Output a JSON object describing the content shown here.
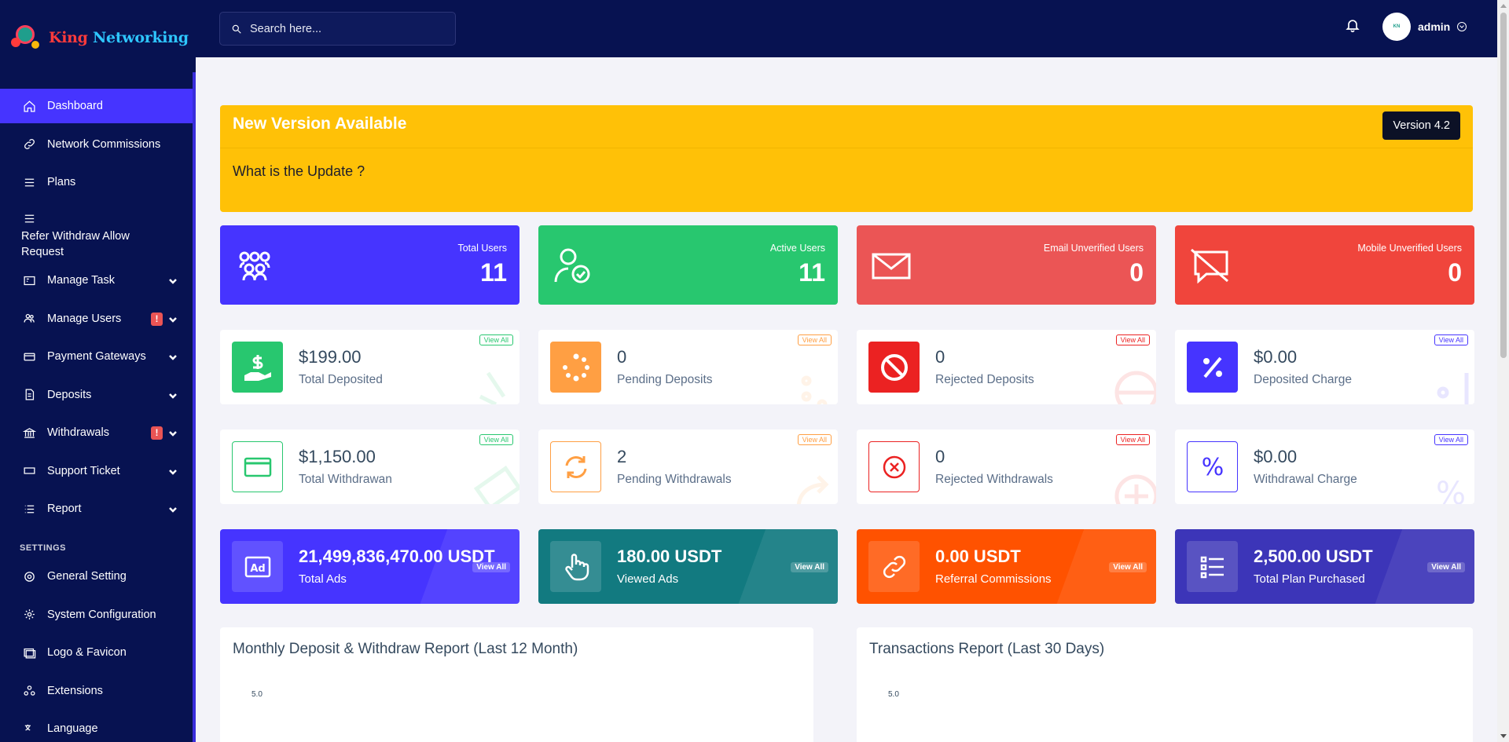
{
  "brand": {
    "part1": "King",
    "part2": "Networking"
  },
  "sidebar": {
    "items": [
      {
        "label": "Dashboard"
      },
      {
        "label": "Network Commissions"
      },
      {
        "label": "Plans"
      },
      {
        "label": "Refer Withdraw Allow Request"
      },
      {
        "label": "Manage Task"
      },
      {
        "label": "Manage Users",
        "badge": "!"
      },
      {
        "label": "Payment Gateways"
      },
      {
        "label": "Deposits"
      },
      {
        "label": "Withdrawals",
        "badge": "!"
      },
      {
        "label": "Support Ticket"
      },
      {
        "label": "Report"
      }
    ],
    "section": "SETTINGS",
    "settings": [
      {
        "label": "General Setting"
      },
      {
        "label": "System Configuration"
      },
      {
        "label": "Logo & Favicon"
      },
      {
        "label": "Extensions"
      },
      {
        "label": "Language"
      }
    ]
  },
  "header": {
    "search_placeholder": "Search here...",
    "user": "admin"
  },
  "banner": {
    "title": "New Version Available",
    "version": "Version 4.2",
    "question": "What is the Update ?"
  },
  "stats": [
    {
      "label": "Total Users",
      "value": "11",
      "color": "#4634ff"
    },
    {
      "label": "Active Users",
      "value": "11",
      "color": "#28c76f"
    },
    {
      "label": "Email Unverified Users",
      "value": "0",
      "color": "#eb5555"
    },
    {
      "label": "Mobile Unverified Users",
      "value": "0",
      "color": "#f0453c"
    }
  ],
  "deposits": [
    {
      "value": "$199.00",
      "label": "Total Deposited",
      "view": "View All",
      "color": "#28c76f"
    },
    {
      "value": "0",
      "label": "Pending Deposits",
      "view": "View All",
      "color": "#ff9f43"
    },
    {
      "value": "0",
      "label": "Rejected Deposits",
      "view": "View All",
      "color": "#eb2222"
    },
    {
      "value": "$0.00",
      "label": "Deposited Charge",
      "view": "View All",
      "color": "#4634ff"
    }
  ],
  "withdrawals": [
    {
      "value": "$1,150.00",
      "label": "Total Withdrawan",
      "view": "View All",
      "color": "#28c76f"
    },
    {
      "value": "2",
      "label": "Pending Withdrawals",
      "view": "View All",
      "color": "#ff9f43"
    },
    {
      "value": "0",
      "label": "Rejected Withdrawals",
      "view": "View All",
      "color": "#eb2222"
    },
    {
      "value": "$0.00",
      "label": "Withdrawal Charge",
      "view": "View All",
      "color": "#4634ff"
    }
  ],
  "ads": [
    {
      "value": "21,499,836,470.00 USDT",
      "label": "Total Ads",
      "view": "View All",
      "color": "#4634ff"
    },
    {
      "value": "180.00 USDT",
      "label": "Viewed Ads",
      "view": "View All",
      "color": "#127a80"
    },
    {
      "value": "0.00 USDT",
      "label": "Referral Commissions",
      "view": "View All",
      "color": "#ff5200"
    },
    {
      "value": "2,500.00 USDT",
      "label": "Total Plan Purchased",
      "view": "View All",
      "color": "#3c35b8"
    }
  ],
  "reports": [
    {
      "title": "Monthly Deposit & Withdraw Report (Last 12 Month)",
      "ytick": "5.0"
    },
    {
      "title": "Transactions Report (Last 30 Days)",
      "ytick": "5.0"
    }
  ]
}
